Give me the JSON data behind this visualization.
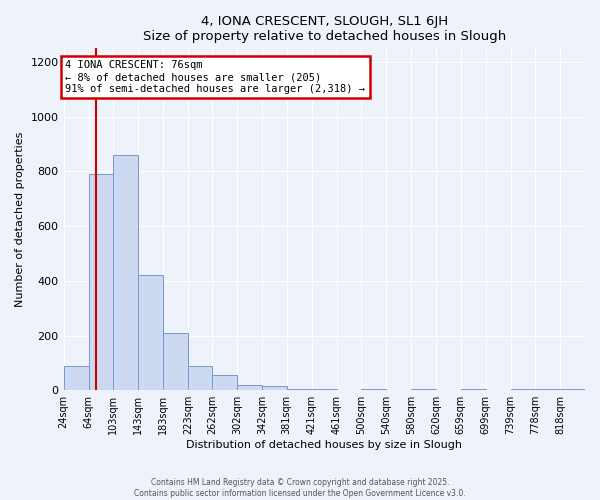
{
  "title": "4, IONA CRESCENT, SLOUGH, SL1 6JH",
  "subtitle": "Size of property relative to detached houses in Slough",
  "xlabel": "Distribution of detached houses by size in Slough",
  "ylabel": "Number of detached properties",
  "bar_values": [
    90,
    790,
    860,
    420,
    210,
    90,
    55,
    20,
    15,
    5,
    5,
    0,
    5,
    0,
    5,
    0,
    5,
    0,
    5,
    5,
    5
  ],
  "bin_labels": [
    "24sqm",
    "64sqm",
    "103sqm",
    "143sqm",
    "183sqm",
    "223sqm",
    "262sqm",
    "302sqm",
    "342sqm",
    "381sqm",
    "421sqm",
    "461sqm",
    "500sqm",
    "540sqm",
    "580sqm",
    "620sqm",
    "659sqm",
    "699sqm",
    "739sqm",
    "778sqm",
    "818sqm"
  ],
  "bin_edges": [
    24,
    64,
    103,
    143,
    183,
    223,
    262,
    302,
    342,
    381,
    421,
    461,
    500,
    540,
    580,
    620,
    659,
    699,
    739,
    778,
    818,
    858
  ],
  "bar_color": "#ccd9f0",
  "bar_edge_color": "#7799cc",
  "vline_x": 76,
  "vline_color": "#cc0000",
  "annotation_title": "4 IONA CRESCENT: 76sqm",
  "annotation_line1": "← 8% of detached houses are smaller (205)",
  "annotation_line2": "91% of semi-detached houses are larger (2,318) →",
  "annotation_box_color": "#cc0000",
  "ylim": [
    0,
    1250
  ],
  "yticks": [
    0,
    200,
    400,
    600,
    800,
    1000,
    1200
  ],
  "footer1": "Contains HM Land Registry data © Crown copyright and database right 2025.",
  "footer2": "Contains public sector information licensed under the Open Government Licence v3.0.",
  "bg_color": "#eef2fa",
  "grid_color": "#ffffff"
}
